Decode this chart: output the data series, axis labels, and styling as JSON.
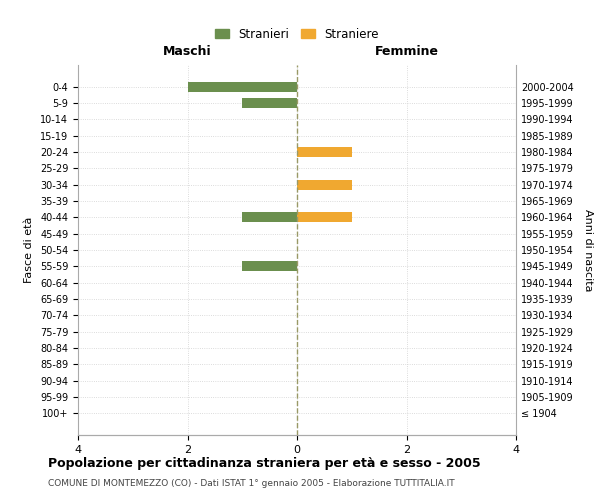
{
  "age_groups": [
    "0-4",
    "5-9",
    "10-14",
    "15-19",
    "20-24",
    "25-29",
    "30-34",
    "35-39",
    "40-44",
    "45-49",
    "50-54",
    "55-59",
    "60-64",
    "65-69",
    "70-74",
    "75-79",
    "80-84",
    "85-89",
    "90-94",
    "95-99",
    "100+"
  ],
  "birth_years": [
    "2000-2004",
    "1995-1999",
    "1990-1994",
    "1985-1989",
    "1980-1984",
    "1975-1979",
    "1970-1974",
    "1965-1969",
    "1960-1964",
    "1955-1959",
    "1950-1954",
    "1945-1949",
    "1940-1944",
    "1935-1939",
    "1930-1934",
    "1925-1929",
    "1920-1924",
    "1915-1919",
    "1910-1914",
    "1905-1909",
    "≤ 1904"
  ],
  "maschi_stranieri": [
    2,
    1,
    0,
    0,
    0,
    0,
    0,
    0,
    1,
    0,
    0,
    1,
    0,
    0,
    0,
    0,
    0,
    0,
    0,
    0,
    0
  ],
  "femmine_straniere": [
    0,
    0,
    0,
    0,
    1,
    0,
    1,
    0,
    1,
    0,
    0,
    0,
    0,
    0,
    0,
    0,
    0,
    0,
    0,
    0,
    0
  ],
  "color_maschi": "#6B8F4E",
  "color_femmine": "#F0A830",
  "xlim": 4,
  "title_main": "Popolazione per cittadinanza straniera per età e sesso - 2005",
  "title_sub": "COMUNE DI MONTEMEZZO (CO) - Dati ISTAT 1° gennaio 2005 - Elaborazione TUTTITALIA.IT",
  "ylabel_left": "Fasce di età",
  "ylabel_right": "Anni di nascita",
  "label_maschi": "Maschi",
  "label_femmine": "Femmine",
  "legend_maschi": "Stranieri",
  "legend_femmine": "Straniere",
  "background_color": "#ffffff",
  "grid_color": "#d0d0d0",
  "center_line_color": "#999966"
}
